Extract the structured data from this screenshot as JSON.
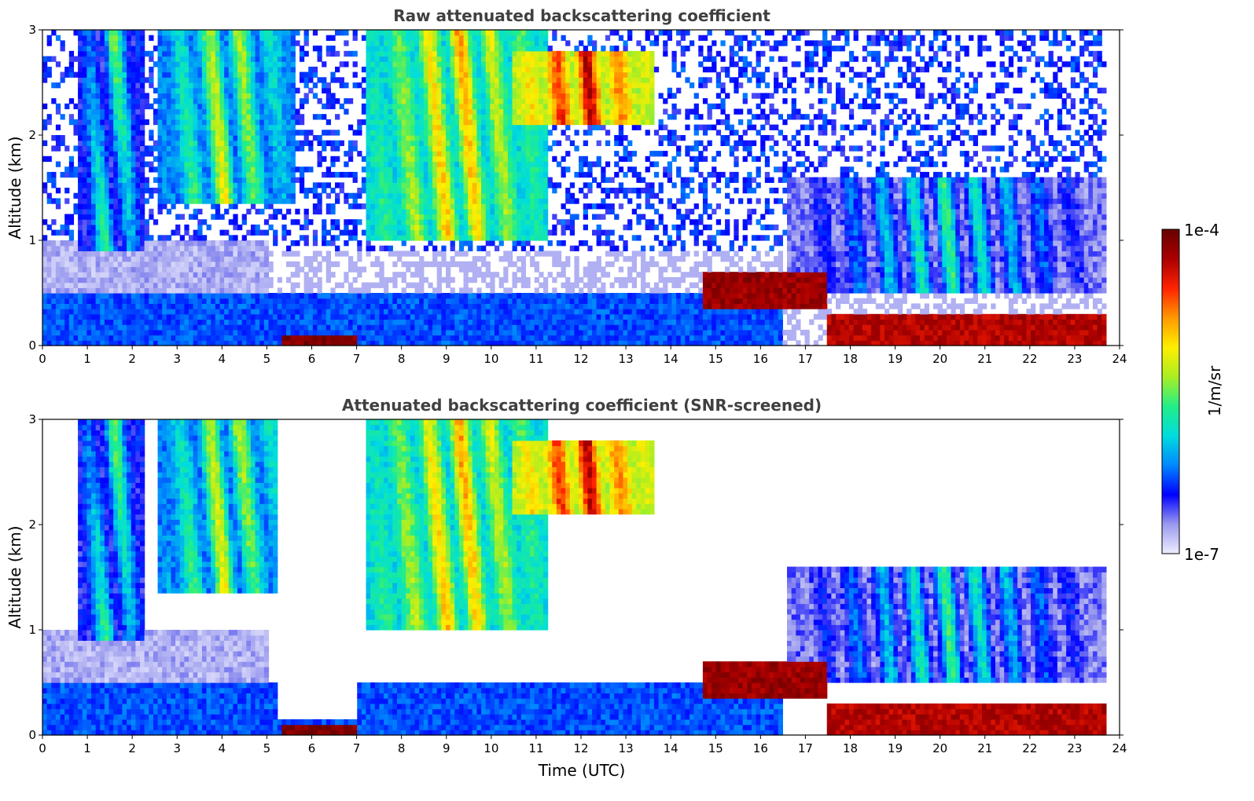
{
  "chart_data": [
    {
      "type": "heatmap",
      "title": "Raw attenuated backscattering coefficient",
      "xlabel": "",
      "ylabel": "Altitude (km)",
      "xlim": [
        0,
        24
      ],
      "ylim": [
        0,
        3
      ],
      "xticks": [
        0,
        1,
        2,
        3,
        4,
        5,
        6,
        7,
        8,
        9,
        10,
        11,
        12,
        13,
        14,
        15,
        16,
        17,
        18,
        19,
        20,
        21,
        22,
        23,
        24
      ],
      "yticks": [
        0,
        1,
        2,
        3
      ],
      "data_end_hour": 23.7,
      "log_scale_color": true,
      "layers": [
        {
          "feature": "boundary-layer aerosol",
          "from": 0,
          "to": 16.5,
          "base_km": 0,
          "top_km": 0.5,
          "log_value": -6.3
        },
        {
          "feature": "residual layer haze",
          "from": 0,
          "to": 5,
          "base_km": 0.5,
          "top_km": 1.0,
          "log_value": -6.8
        },
        {
          "feature": "surface layer",
          "from": 5.3,
          "to": 7.0,
          "base_km": 0.0,
          "top_km": 0.12,
          "log_value": -4.1
        },
        {
          "feature": "elevated layer",
          "from": 14.7,
          "to": 17.5,
          "base_km": 0.35,
          "top_km": 0.7,
          "log_value": -4.2
        },
        {
          "feature": "night boundary layer",
          "from": 17.5,
          "to": 23.7,
          "base_km": 0.0,
          "top_km": 0.3,
          "log_value": -4.3
        }
      ],
      "clouds": [
        {
          "from": 0.8,
          "to": 2.3,
          "base_km": 0.9,
          "top_km": 3.0,
          "peak_log": -5.2
        },
        {
          "from": 2.6,
          "to": 5.6,
          "base_km": 1.35,
          "top_km": 3.0,
          "peak_log": -4.9
        },
        {
          "from": 7.2,
          "to": 11.3,
          "base_km": 1.0,
          "top_km": 3.0,
          "peak_log": -4.6
        },
        {
          "from": 10.5,
          "to": 13.6,
          "base_km": 2.1,
          "top_km": 2.8,
          "peak_log": -4.0
        },
        {
          "from": 16.6,
          "to": 23.7,
          "base_km": 0.5,
          "top_km": 1.6,
          "peak_log": -5.4
        }
      ]
    },
    {
      "type": "heatmap",
      "title": "Attenuated backscattering coefficient (SNR-screened)",
      "xlabel": "Time (UTC)",
      "ylabel": "Altitude (km)",
      "xlim": [
        0,
        24
      ],
      "ylim": [
        0,
        3
      ],
      "xticks": [
        0,
        1,
        2,
        3,
        4,
        5,
        6,
        7,
        8,
        9,
        10,
        11,
        12,
        13,
        14,
        15,
        16,
        17,
        18,
        19,
        20,
        21,
        22,
        23,
        24
      ],
      "yticks": [
        0,
        1,
        2,
        3
      ],
      "data_end_hour": 23.7,
      "screened_gaps": [
        [
          5.2,
          7.0
        ]
      ],
      "log_scale_color": true
    }
  ],
  "colorbar": {
    "label": "1/m/sr",
    "max_label": "1e-4",
    "min_label": "1e-7",
    "range_log10": [
      -7,
      -4
    ],
    "colormap": [
      "#eeeeff",
      "#9999ee",
      "#0000ff",
      "#0088ff",
      "#00dddd",
      "#22ee88",
      "#aaee22",
      "#ffee00",
      "#ff9900",
      "#ff2200",
      "#aa0000",
      "#660000"
    ]
  }
}
